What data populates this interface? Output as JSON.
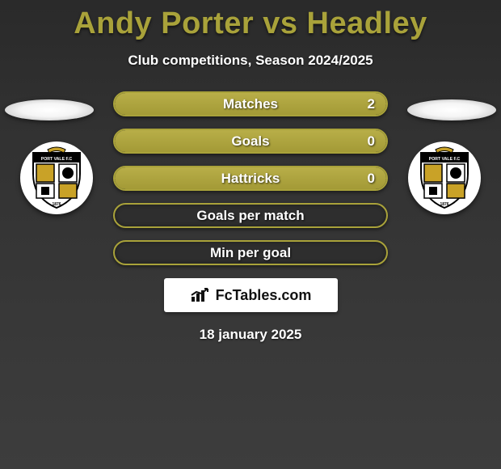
{
  "header": {
    "title": "Andy Porter vs Headley",
    "subtitle": "Club competitions, Season 2024/2025",
    "title_color": "#a9a23a"
  },
  "accent_color": "#a9a23a",
  "bar_bg_color": "#2e2e2e",
  "text_color": "#ffffff",
  "stats": [
    {
      "label": "Matches",
      "left_value": "2",
      "left_fill_pct": 100
    },
    {
      "label": "Goals",
      "left_value": "0",
      "left_fill_pct": 100
    },
    {
      "label": "Hattricks",
      "left_value": "0",
      "left_fill_pct": 100
    },
    {
      "label": "Goals per match",
      "left_value": "",
      "left_fill_pct": 0
    },
    {
      "label": "Min per goal",
      "left_value": "",
      "left_fill_pct": 0
    }
  ],
  "branding": {
    "label": "FcTables.com"
  },
  "date": "18 january 2025",
  "clubs": {
    "left": {
      "name": "Port Vale FC",
      "shield_text_top": "PORT VALE F.C",
      "founding": "1876"
    },
    "right": {
      "name": "Port Vale FC",
      "shield_text_top": "PORT VALE F.C",
      "founding": "1876"
    }
  }
}
